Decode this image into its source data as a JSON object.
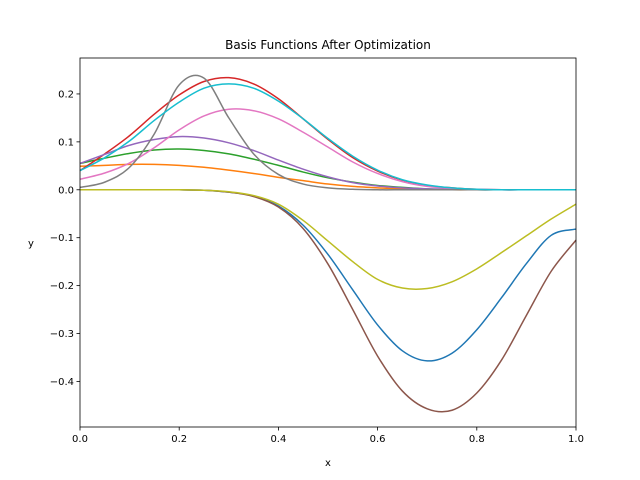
{
  "chart_data": {
    "type": "line",
    "title": "Basis Functions After Optimization",
    "xlabel": "x",
    "ylabel": "y",
    "xlim": [
      0.0,
      1.0
    ],
    "ylim": [
      -0.495,
      0.275
    ],
    "x_ticks": [
      0.0,
      0.2,
      0.4,
      0.6,
      0.8,
      1.0
    ],
    "x_tick_labels": [
      "0.0",
      "0.2",
      "0.4",
      "0.6",
      "0.8",
      "1.0"
    ],
    "y_ticks": [
      0.2,
      0.1,
      0.0,
      -0.1,
      -0.2,
      -0.3,
      -0.4
    ],
    "y_tick_labels": [
      "0.2",
      "0.1",
      "0.0",
      "−0.1",
      "−0.2",
      "−0.3",
      "−0.4"
    ],
    "grid": false,
    "legend": "none",
    "x": [
      0.0,
      0.05,
      0.1,
      0.15,
      0.2,
      0.25,
      0.3,
      0.35,
      0.4,
      0.45,
      0.5,
      0.55,
      0.6,
      0.65,
      0.7,
      0.75,
      0.8,
      0.85,
      0.9,
      0.95,
      1.0
    ],
    "series": [
      {
        "color": "#1f77b4",
        "values": [
          0.0,
          0.0,
          0.0,
          0.0,
          0.0,
          -0.001,
          -0.005,
          -0.013,
          -0.034,
          -0.074,
          -0.135,
          -0.209,
          -0.282,
          -0.336,
          -0.357,
          -0.341,
          -0.292,
          -0.225,
          -0.154,
          -0.095,
          -0.082
        ]
      },
      {
        "color": "#ff7f0e",
        "values": [
          0.049,
          0.051,
          0.053,
          0.053,
          0.051,
          0.047,
          0.041,
          0.034,
          0.026,
          0.019,
          0.012,
          0.007,
          0.004,
          0.002,
          0.001,
          0.0,
          0.0,
          0.0,
          0.0,
          0.0,
          0.0
        ]
      },
      {
        "color": "#2ca02c",
        "values": [
          0.055,
          0.066,
          0.076,
          0.083,
          0.085,
          0.082,
          0.075,
          0.064,
          0.051,
          0.037,
          0.025,
          0.016,
          0.009,
          0.005,
          0.002,
          0.001,
          0.0,
          0.0,
          0.0,
          0.0,
          0.0
        ]
      },
      {
        "color": "#d62728",
        "values": [
          0.04,
          0.075,
          0.113,
          0.158,
          0.198,
          0.226,
          0.234,
          0.221,
          0.19,
          0.148,
          0.105,
          0.067,
          0.039,
          0.02,
          0.009,
          0.004,
          0.001,
          0.0,
          0.0,
          0.0,
          0.0
        ]
      },
      {
        "color": "#9467bd",
        "values": [
          0.055,
          0.074,
          0.093,
          0.105,
          0.111,
          0.108,
          0.098,
          0.082,
          0.062,
          0.043,
          0.027,
          0.015,
          0.008,
          0.004,
          0.002,
          0.001,
          0.0,
          0.0,
          0.0,
          0.0,
          0.0
        ]
      },
      {
        "color": "#8c564b",
        "values": [
          0.0,
          0.0,
          0.0,
          0.0,
          0.0,
          -0.001,
          -0.005,
          -0.014,
          -0.036,
          -0.081,
          -0.155,
          -0.25,
          -0.347,
          -0.42,
          -0.457,
          -0.46,
          -0.424,
          -0.355,
          -0.262,
          -0.17,
          -0.105
        ]
      },
      {
        "color": "#e377c2",
        "values": [
          0.022,
          0.035,
          0.056,
          0.088,
          0.125,
          0.154,
          0.168,
          0.165,
          0.148,
          0.12,
          0.089,
          0.058,
          0.034,
          0.017,
          0.007,
          0.003,
          0.001,
          0.0,
          0.0,
          0.0,
          0.0
        ]
      },
      {
        "color": "#7f7f7f",
        "values": [
          0.005,
          0.016,
          0.047,
          0.117,
          0.219,
          0.233,
          0.15,
          0.075,
          0.032,
          0.012,
          0.004,
          0.001,
          0.0,
          0.0,
          0.0,
          0.0,
          0.0,
          0.0,
          0.0,
          0.0,
          0.0
        ]
      },
      {
        "color": "#bcbd22",
        "values": [
          0.0,
          0.0,
          0.0,
          0.0,
          0.0,
          -0.001,
          -0.004,
          -0.012,
          -0.03,
          -0.064,
          -0.107,
          -0.15,
          -0.187,
          -0.205,
          -0.206,
          -0.192,
          -0.165,
          -0.131,
          -0.096,
          -0.061,
          -0.03
        ]
      },
      {
        "color": "#17becf",
        "values": [
          0.04,
          0.067,
          0.102,
          0.145,
          0.183,
          0.212,
          0.221,
          0.212,
          0.185,
          0.148,
          0.107,
          0.07,
          0.041,
          0.021,
          0.01,
          0.004,
          0.001,
          0.0,
          0.0,
          0.0,
          0.0
        ]
      }
    ]
  }
}
